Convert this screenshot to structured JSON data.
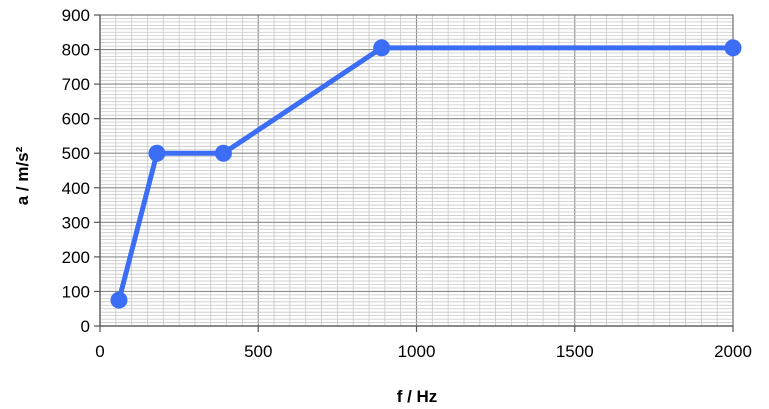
{
  "chart_data": {
    "type": "line",
    "title": "",
    "xlabel": "f / Hz",
    "ylabel": "a / m/s²",
    "xlim": [
      0,
      2000
    ],
    "ylim": [
      0,
      900
    ],
    "x_ticks": [
      "0",
      "500",
      "1000",
      "1500",
      "2000"
    ],
    "y_ticks": [
      "0",
      "100",
      "200",
      "300",
      "400",
      "500",
      "600",
      "700",
      "800",
      "900"
    ],
    "grid": true,
    "legend": "none",
    "series": [
      {
        "color": "#3b6ef5",
        "x": [
          60,
          180,
          390,
          890,
          2000
        ],
        "y": [
          75,
          500,
          500,
          805,
          805
        ]
      }
    ]
  }
}
